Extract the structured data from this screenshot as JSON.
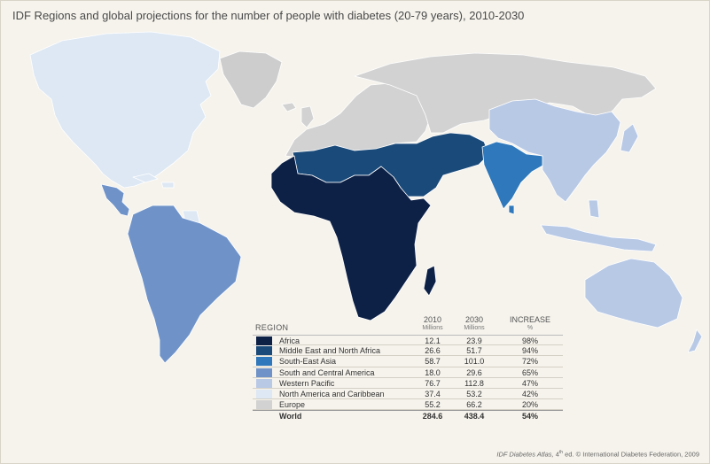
{
  "title": "IDF Regions and global projections for the number of people with diabetes (20-79 years), 2010-2030",
  "colors": {
    "africa": "#0d2147",
    "mena": "#1a4a7a",
    "sea": "#2e78bb",
    "sca": "#6f93c9",
    "wp": "#b8c9e6",
    "nac": "#dde8f4",
    "europe": "#d2d2d2",
    "other": "#cdcdcd",
    "background": "#f6f3ec"
  },
  "legend": {
    "region_header": "REGION",
    "col_2010": "2010",
    "col_2010_sub": "Millions",
    "col_2030": "2030",
    "col_2030_sub": "Millions",
    "col_increase": "INCREASE",
    "col_increase_sub": "%",
    "rows": [
      {
        "name": "Africa",
        "v2010": "12.1",
        "v2030": "23.9",
        "increase": "98%",
        "color": "#0d2147"
      },
      {
        "name": "Middle East and North Africa",
        "v2010": "26.6",
        "v2030": "51.7",
        "increase": "94%",
        "color": "#1a4a7a"
      },
      {
        "name": "South-East Asia",
        "v2010": "58.7",
        "v2030": "101.0",
        "increase": "72%",
        "color": "#2e78bb"
      },
      {
        "name": "South and Central America",
        "v2010": "18.0",
        "v2030": "29.6",
        "increase": "65%",
        "color": "#6f93c9"
      },
      {
        "name": "Western Pacific",
        "v2010": "76.7",
        "v2030": "112.8",
        "increase": "47%",
        "color": "#b8c9e6"
      },
      {
        "name": "North America and Caribbean",
        "v2010": "37.4",
        "v2030": "53.2",
        "increase": "42%",
        "color": "#dde8f4"
      },
      {
        "name": "Europe",
        "v2010": "55.2",
        "v2030": "66.2",
        "increase": "20%",
        "color": "#d2d2d2"
      }
    ],
    "total": {
      "name": "World",
      "v2010": "284.6",
      "v2030": "438.4",
      "increase": "54%"
    }
  },
  "credit": {
    "source": "IDF Diabetes Atlas,",
    "edition": "4",
    "edition_sup": "th",
    "rest": " ed. © International Diabetes Federation, 2009"
  }
}
